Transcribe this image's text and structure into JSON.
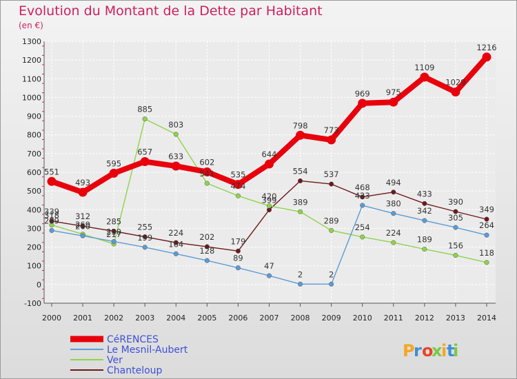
{
  "chart_data": {
    "type": "line",
    "title": "Evolution du Montant de la Dette par Habitant",
    "subtitle": "(en €)",
    "x": [
      "2000",
      "2001",
      "2002",
      "2003",
      "2004",
      "2005",
      "2006",
      "2007",
      "2008",
      "2009",
      "2010",
      "2011",
      "2012",
      "2013",
      "2014"
    ],
    "ylim": [
      -100,
      1300
    ],
    "yticks": [
      -100,
      0,
      100,
      200,
      300,
      400,
      500,
      600,
      700,
      800,
      900,
      1000,
      1100,
      1200,
      1300
    ],
    "grid": true,
    "legend_position": "bottom-left",
    "series": [
      {
        "name": "CéRENCES",
        "color": "#e8000c",
        "values": [
          551,
          493,
          595,
          657,
          633,
          602,
          535,
          644,
          798,
          773,
          969,
          975,
          1109,
          1029,
          1216
        ]
      },
      {
        "name": "Le Mesnil-Aubert",
        "color": "#5b9bd5",
        "values": [
          289,
          260,
          230,
          199,
          164,
          128,
          89,
          47,
          2,
          2,
          423,
          380,
          342,
          305,
          264
        ]
      },
      {
        "name": "Ver",
        "color": "#8ed44a",
        "values": [
          318,
          269,
          217,
          885,
          803,
          541,
          474,
          420,
          389,
          289,
          254,
          224,
          189,
          156,
          118
        ]
      },
      {
        "name": "Chanteloup",
        "color": "#6b1a1a",
        "values": [
          339,
          312,
          285,
          255,
          224,
          202,
          179,
          399,
          554,
          537,
          468,
          494,
          433,
          390,
          349
        ]
      }
    ]
  },
  "branding": {
    "logo_text": "Proxiti"
  }
}
